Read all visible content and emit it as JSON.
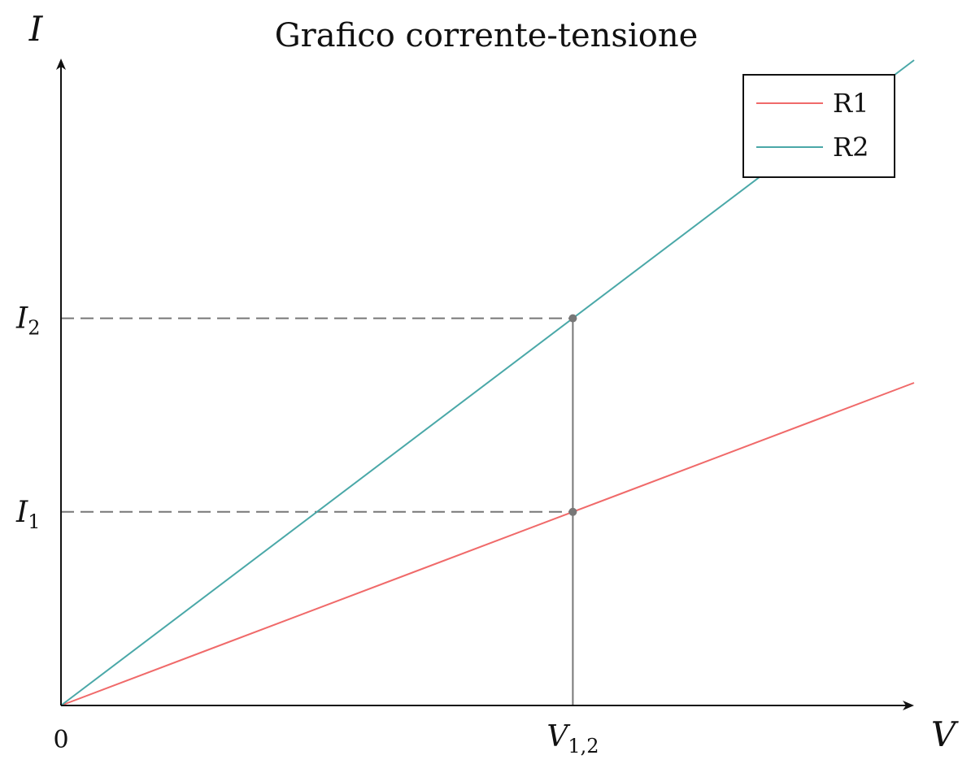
{
  "chart_data": {
    "type": "line",
    "title": "Grafico corrente-tensione",
    "xlabel": "V",
    "ylabel": "I",
    "origin_label": "0",
    "xlim": [
      0,
      1
    ],
    "ylim": [
      0,
      1
    ],
    "grid": false,
    "legend_position": "top-right",
    "series": [
      {
        "name": "R1",
        "color": "#f06a6a",
        "slope": 0.5,
        "x": [
          0,
          1
        ],
        "y": [
          0,
          0.5
        ]
      },
      {
        "name": "R2",
        "color": "#4aa8a8",
        "slope": 1.0,
        "x": [
          0,
          1
        ],
        "y": [
          0,
          1.0
        ]
      }
    ],
    "x_ticks": [
      {
        "main": "V",
        "sub": "1,2",
        "value": 0.6
      }
    ],
    "y_ticks": [
      {
        "main": "I",
        "sub": "1",
        "value": 0.3
      },
      {
        "main": "I",
        "sub": "2",
        "value": 0.6
      }
    ],
    "guide_color": "#777777",
    "marker_points": [
      {
        "x": 0.6,
        "y": 0.3
      },
      {
        "x": 0.6,
        "y": 0.6
      }
    ]
  }
}
